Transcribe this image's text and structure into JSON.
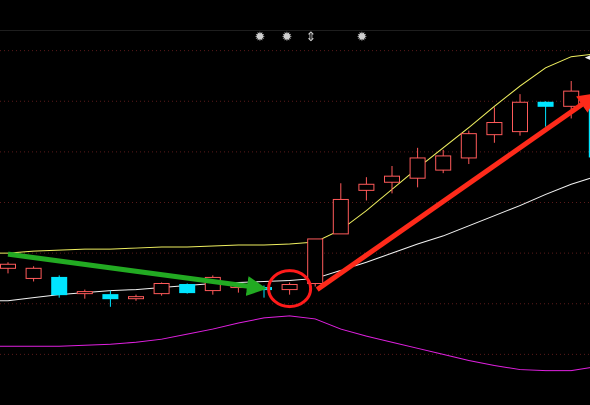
{
  "toolbar": {
    "icons": [
      "gear-icon",
      "gear-icon",
      "vertical-arrows-icon",
      "gear-icon"
    ],
    "glyphs": [
      "✹",
      "✹",
      "⇕",
      "✹"
    ]
  },
  "colors": {
    "background": "#000000",
    "grid": "#5a1a1a",
    "bull_candle": "#ff5a5a",
    "bear_candle": "#00e5ff",
    "upper_band": "#f0f060",
    "middle_band": "#f2f2f2",
    "indicator": "#e020e0",
    "green_arrow": "#22aa22",
    "red_arrow": "#ff2a1a",
    "circle": "#ff1a1a"
  },
  "chart_data": {
    "type": "candlestick",
    "ylim": [
      0,
      400
    ],
    "grid": true,
    "candles": [
      {
        "o": 135,
        "h": 141,
        "l": 130,
        "c": 139
      },
      {
        "o": 125,
        "h": 137,
        "l": 122,
        "c": 135
      },
      {
        "o": 126,
        "h": 128,
        "l": 106,
        "c": 109
      },
      {
        "o": 110,
        "h": 114,
        "l": 105,
        "c": 112
      },
      {
        "o": 109,
        "h": 113,
        "l": 97,
        "c": 105
      },
      {
        "o": 105,
        "h": 109,
        "l": 103,
        "c": 107
      },
      {
        "o": 110,
        "h": 121,
        "l": 108,
        "c": 120
      },
      {
        "o": 119,
        "h": 120,
        "l": 110,
        "c": 111
      },
      {
        "o": 113,
        "h": 128,
        "l": 109,
        "c": 126
      },
      {
        "o": 116,
        "h": 121,
        "l": 111,
        "c": 118
      },
      {
        "o": 116,
        "h": 118,
        "l": 106,
        "c": 114
      },
      {
        "o": 114,
        "h": 121,
        "l": 109,
        "c": 119
      },
      {
        "o": 120,
        "h": 164,
        "l": 117,
        "c": 164
      },
      {
        "o": 169,
        "h": 219,
        "l": 169,
        "c": 203
      },
      {
        "o": 212,
        "h": 225,
        "l": 202,
        "c": 218
      },
      {
        "o": 220,
        "h": 236,
        "l": 209,
        "c": 226
      },
      {
        "o": 224,
        "h": 254,
        "l": 215,
        "c": 244
      },
      {
        "o": 232,
        "h": 252,
        "l": 229,
        "c": 246
      },
      {
        "o": 244,
        "h": 271,
        "l": 238,
        "c": 268
      },
      {
        "o": 267,
        "h": 294,
        "l": 259,
        "c": 279
      },
      {
        "o": 270,
        "h": 307,
        "l": 266,
        "c": 299
      },
      {
        "o": 299,
        "h": 300,
        "l": 275,
        "c": 295
      },
      {
        "o": 295,
        "h": 320,
        "l": 283,
        "c": 310
      },
      {
        "o": 300,
        "h": 305,
        "l": 245,
        "c": 245
      }
    ],
    "upper_band": [
      150,
      152,
      153,
      154,
      154,
      155,
      156,
      156,
      157,
      158,
      158,
      159,
      161,
      173,
      192,
      213,
      234,
      254,
      274,
      295,
      315,
      333,
      344,
      347
    ],
    "middle_band": [
      103,
      106,
      109,
      111,
      113,
      114,
      116,
      118,
      120,
      121,
      122,
      123,
      125,
      133,
      141,
      150,
      159,
      167,
      177,
      187,
      197,
      208,
      218,
      226
    ],
    "indicator": [
      58,
      58,
      58,
      59,
      60,
      62,
      65,
      70,
      75,
      81,
      86,
      88,
      85,
      75,
      68,
      62,
      56,
      50,
      44,
      39,
      35,
      34,
      34,
      38
    ],
    "annotations": [
      {
        "type": "arrow",
        "color": "green",
        "from": 0,
        "to": 10
      },
      {
        "type": "circle",
        "color": "red",
        "at": 11
      },
      {
        "type": "arrow",
        "color": "red",
        "from": 12,
        "to": 23
      },
      {
        "type": "arrow",
        "color": "white",
        "at": 23
      }
    ]
  }
}
